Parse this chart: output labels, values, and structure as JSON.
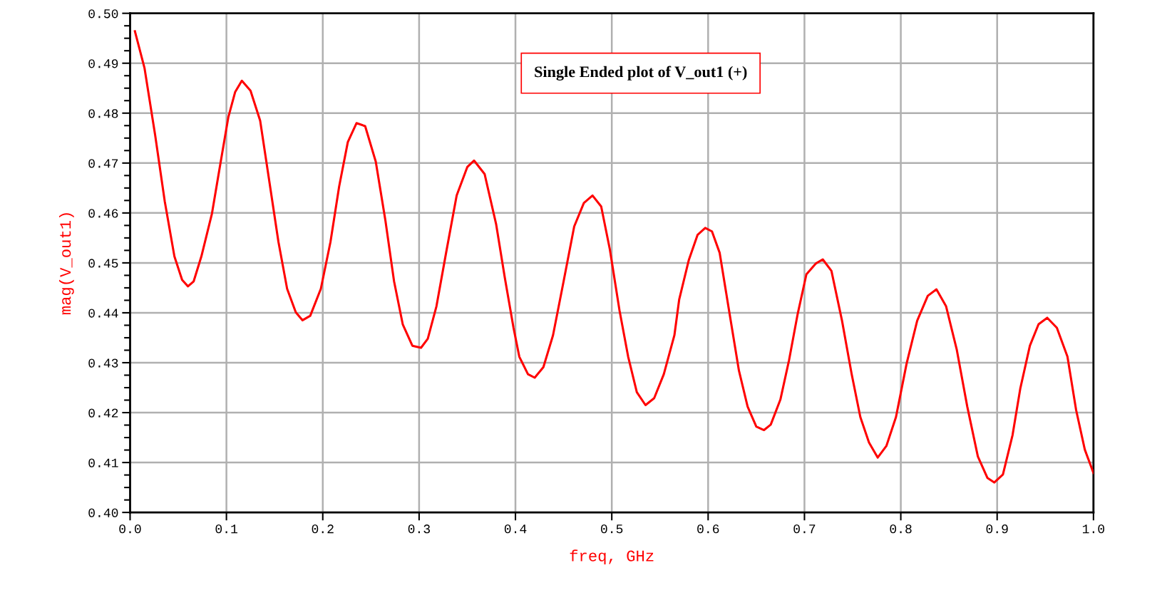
{
  "chart_data": {
    "type": "line",
    "xlabel": "freq, GHz",
    "ylabel": "mag(V_out1)",
    "annotations": [
      "Single Ended plot of V_out1 (+)"
    ],
    "xlim": [
      0,
      1
    ],
    "ylim": [
      0.4,
      0.5
    ],
    "xticks": [
      {
        "value": 0,
        "label": "0.0"
      },
      {
        "value": 0.1,
        "label": "0.1"
      },
      {
        "value": 0.2,
        "label": "0.2"
      },
      {
        "value": 0.3,
        "label": "0.3"
      },
      {
        "value": 0.4,
        "label": "0.4"
      },
      {
        "value": 0.5,
        "label": "0.5"
      },
      {
        "value": 0.6,
        "label": "0.6"
      },
      {
        "value": 0.7,
        "label": "0.7"
      },
      {
        "value": 0.8,
        "label": "0.8"
      },
      {
        "value": 0.9,
        "label": "0.9"
      },
      {
        "value": 1,
        "label": "1.0"
      }
    ],
    "yticks": [
      {
        "value": 0.4,
        "label": "0.40"
      },
      {
        "value": 0.41,
        "label": "0.41"
      },
      {
        "value": 0.42,
        "label": "0.42"
      },
      {
        "value": 0.43,
        "label": "0.43"
      },
      {
        "value": 0.44,
        "label": "0.44"
      },
      {
        "value": 0.45,
        "label": "0.45"
      },
      {
        "value": 0.46,
        "label": "0.46"
      },
      {
        "value": 0.47,
        "label": "0.47"
      },
      {
        "value": 0.48,
        "label": "0.48"
      },
      {
        "value": 0.49,
        "label": "0.49"
      },
      {
        "value": 0.5,
        "label": "0.50"
      }
    ],
    "grid": true,
    "marker": "none",
    "line_style": "solid",
    "series": [
      {
        "color": "#ff0000",
        "x": [
          0.005,
          0.015,
          0.026,
          0.036,
          0.046,
          0.054,
          0.06,
          0.066,
          0.074,
          0.085,
          0.094,
          0.102,
          0.109,
          0.116,
          0.125,
          0.135,
          0.144,
          0.154,
          0.163,
          0.172,
          0.179,
          0.187,
          0.198,
          0.208,
          0.217,
          0.226,
          0.235,
          0.244,
          0.255,
          0.265,
          0.274,
          0.283,
          0.293,
          0.302,
          0.309,
          0.318,
          0.328,
          0.339,
          0.35,
          0.357,
          0.368,
          0.38,
          0.389,
          0.398,
          0.404,
          0.413,
          0.42,
          0.429,
          0.439,
          0.45,
          0.461,
          0.471,
          0.48,
          0.489,
          0.498,
          0.508,
          0.517,
          0.526,
          0.535,
          0.544,
          0.554,
          0.565,
          0.57,
          0.58,
          0.589,
          0.597,
          0.604,
          0.612,
          0.621,
          0.632,
          0.641,
          0.65,
          0.658,
          0.665,
          0.675,
          0.684,
          0.693,
          0.702,
          0.712,
          0.719,
          0.728,
          0.739,
          0.749,
          0.758,
          0.767,
          0.776,
          0.785,
          0.795,
          0.806,
          0.817,
          0.828,
          0.837,
          0.847,
          0.858,
          0.869,
          0.88,
          0.89,
          0.897,
          0.906,
          0.916,
          0.924,
          0.934,
          0.943,
          0.952,
          0.962,
          0.973,
          0.982,
          0.991,
          1.0
        ],
        "values": [
          0.4964,
          0.489,
          0.4756,
          0.4623,
          0.4513,
          0.4466,
          0.4453,
          0.4463,
          0.4513,
          0.4599,
          0.4702,
          0.4792,
          0.4842,
          0.4865,
          0.4845,
          0.4785,
          0.467,
          0.4542,
          0.4448,
          0.4401,
          0.4385,
          0.4394,
          0.4448,
          0.4542,
          0.4653,
          0.4742,
          0.478,
          0.4774,
          0.4703,
          0.4585,
          0.4463,
          0.4377,
          0.4334,
          0.433,
          0.4348,
          0.4413,
          0.452,
          0.4635,
          0.4692,
          0.4705,
          0.4678,
          0.4577,
          0.447,
          0.437,
          0.4312,
          0.4277,
          0.427,
          0.4291,
          0.4355,
          0.4463,
          0.4573,
          0.462,
          0.4635,
          0.4613,
          0.4527,
          0.4405,
          0.4312,
          0.4241,
          0.4215,
          0.4229,
          0.4277,
          0.4355,
          0.4427,
          0.4506,
          0.4556,
          0.457,
          0.4563,
          0.452,
          0.4413,
          0.4284,
          0.4212,
          0.4172,
          0.4165,
          0.4176,
          0.4226,
          0.4305,
          0.4398,
          0.4477,
          0.4499,
          0.4507,
          0.4484,
          0.4384,
          0.4277,
          0.4191,
          0.414,
          0.411,
          0.4133,
          0.4191,
          0.4298,
          0.4384,
          0.4434,
          0.4447,
          0.4413,
          0.4327,
          0.4212,
          0.4112,
          0.4069,
          0.406,
          0.4076,
          0.4155,
          0.4248,
          0.4334,
          0.4377,
          0.439,
          0.437,
          0.4312,
          0.4205,
          0.4126,
          0.4079
        ]
      }
    ]
  }
}
